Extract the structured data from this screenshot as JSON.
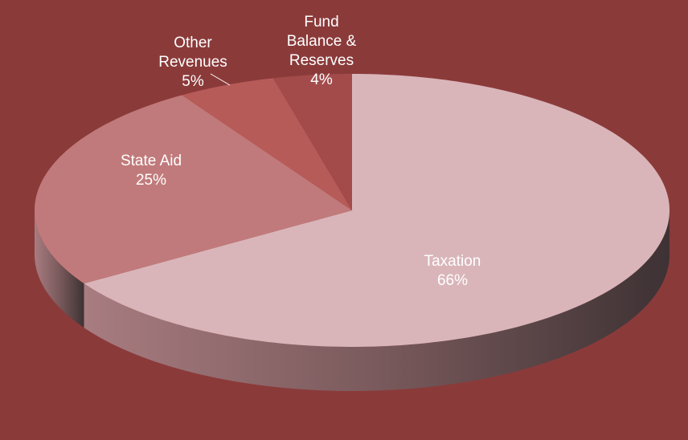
{
  "chart_data": {
    "type": "pie3d",
    "categories": [
      "Taxation",
      "State Aid",
      "Other Revenues",
      "Fund Balance & Reserves"
    ],
    "values": [
      66,
      25,
      5,
      4
    ],
    "value_labels": [
      "66%",
      "25%",
      "5%",
      "4%"
    ],
    "colors": [
      "#d9b5b9",
      "#c17a7b",
      "#b75b59",
      "#a34b4b"
    ]
  }
}
